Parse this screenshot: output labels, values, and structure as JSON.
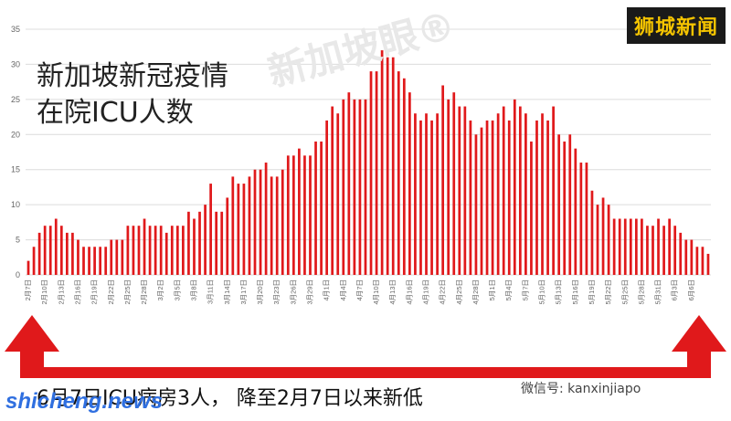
{
  "chart_data": {
    "type": "bar",
    "title_lines": [
      "新加坡新冠疫情",
      "在院ICU人数"
    ],
    "ylim": [
      0,
      35
    ],
    "yticks": [
      0,
      5,
      10,
      15,
      20,
      25,
      30,
      35
    ],
    "bar_color": "#e0191b",
    "grid": true,
    "xtick_labels": [
      "2月7日",
      "2月10日",
      "2月13日",
      "2月16日",
      "2月19日",
      "2月22日",
      "2月25日",
      "2月28日",
      "3月2日",
      "3月5日",
      "3月8日",
      "3月11日",
      "3月14日",
      "3月17日",
      "3月20日",
      "3月23日",
      "3月26日",
      "3月29日",
      "4月1日",
      "4月4日",
      "4月7日",
      "4月10日",
      "4月13日",
      "4月16日",
      "4月19日",
      "4月22日",
      "4月25日",
      "4月28日",
      "5月1日",
      "5月4日",
      "5月7日",
      "5月10日",
      "5月13日",
      "5月16日",
      "5月19日",
      "5月22日",
      "5月25日",
      "5月28日",
      "5月31日",
      "6月3日",
      "6月6日"
    ],
    "values": [
      2,
      4,
      6,
      7,
      7,
      8,
      7,
      6,
      6,
      5,
      4,
      4,
      4,
      4,
      4,
      5,
      5,
      5,
      7,
      7,
      7,
      8,
      7,
      7,
      7,
      6,
      7,
      7,
      7,
      9,
      8,
      9,
      10,
      13,
      9,
      9,
      11,
      14,
      13,
      13,
      14,
      15,
      15,
      16,
      14,
      14,
      15,
      17,
      17,
      18,
      17,
      17,
      19,
      19,
      22,
      24,
      23,
      25,
      26,
      25,
      25,
      25,
      29,
      29,
      32,
      31,
      31,
      29,
      28,
      26,
      23,
      22,
      23,
      22,
      23,
      27,
      25,
      26,
      24,
      24,
      22,
      20,
      21,
      22,
      22,
      23,
      24,
      22,
      25,
      24,
      23,
      19,
      22,
      23,
      22,
      24,
      20,
      19,
      20,
      18,
      16,
      16,
      12,
      10,
      11,
      10,
      8,
      8,
      8,
      8,
      8,
      8,
      7,
      7,
      8,
      7,
      8,
      7,
      6,
      5,
      5,
      4,
      4,
      3
    ]
  },
  "watermark": "新加坡眼®",
  "source_tag": "狮城新闻",
  "caption": "6月7日ICU病房3人， 降至2月7日以来新低",
  "wechat": "微信号: kanxinjiapo",
  "site": "shicheng.news",
  "colors": {
    "arrow": "#e0191b",
    "bars": "#e0191b",
    "tag_bg": "#1a1a1a",
    "tag_fg": "#f5c400"
  }
}
